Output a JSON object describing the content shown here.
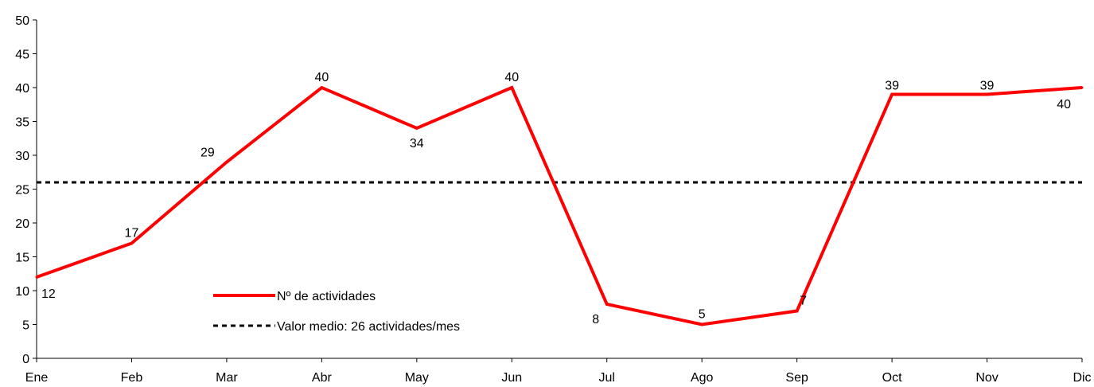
{
  "chart_data": {
    "type": "line",
    "categories": [
      "Ene",
      "Feb",
      "Mar",
      "Abr",
      "May",
      "Jun",
      "Jul",
      "Ago",
      "Sep",
      "Oct",
      "Nov",
      "Dic"
    ],
    "series": [
      {
        "name": "Nº de actividades",
        "values": [
          12,
          17,
          29,
          40,
          34,
          40,
          8,
          5,
          7,
          39,
          39,
          40
        ],
        "color": "#ff0000",
        "style": "solid"
      },
      {
        "name": "Valor medio: 26 actividades/mes",
        "values": [
          26,
          26,
          26,
          26,
          26,
          26,
          26,
          26,
          26,
          26,
          26,
          26
        ],
        "color": "#000000",
        "style": "dashed"
      }
    ],
    "title": "",
    "xlabel": "",
    "ylabel": "",
    "ylim": [
      0,
      50
    ],
    "yticks": [
      "0",
      "5",
      "10",
      "15",
      "20",
      "25",
      "30",
      "35",
      "40",
      "45",
      "50"
    ],
    "grid": false,
    "legend": "bottom-left inside plot"
  }
}
